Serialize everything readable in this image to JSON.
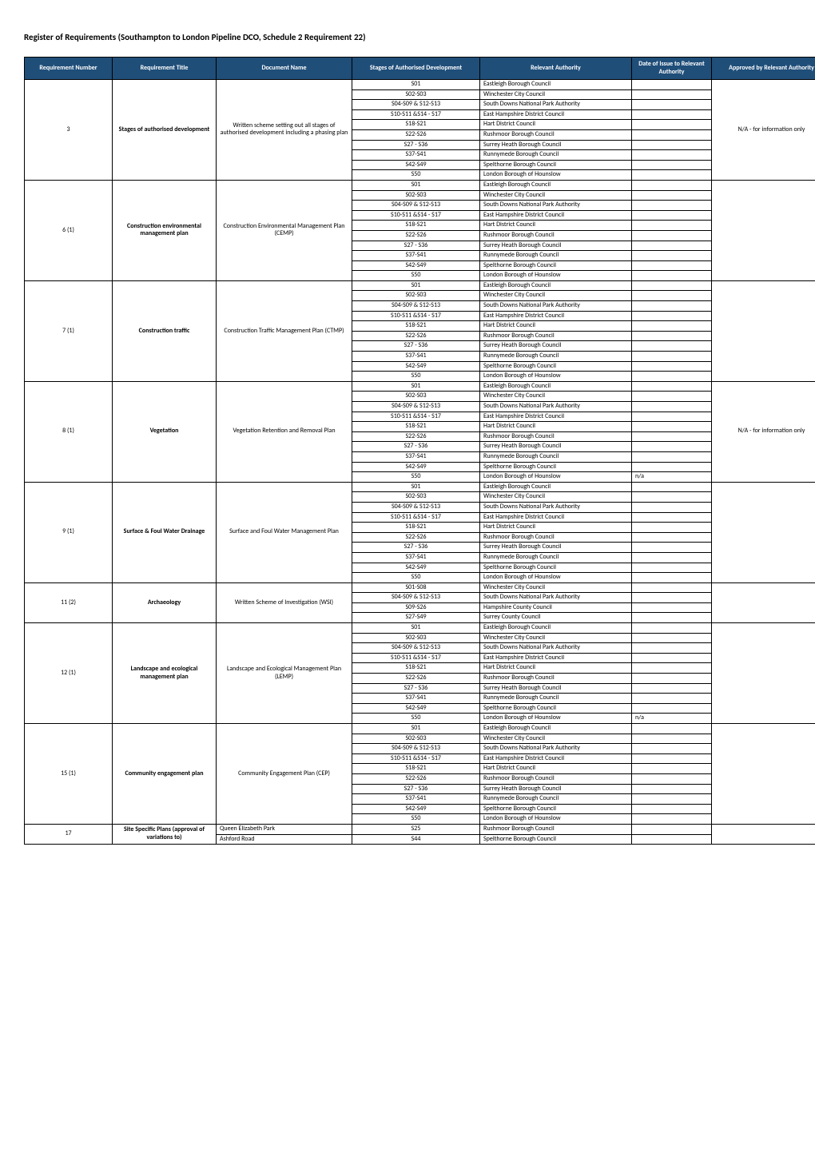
{
  "title": "Register of Requirements (Southampton to London Pipeline DCO, Schedule 2 Requirement 22)",
  "headers": [
    "Requirement Number",
    "Requirement Title",
    "Document Name",
    "Stages of Authorised Development",
    "Relevant Authority",
    "Date of Issue to Relevant Authority",
    "Approved by Relevant Authority"
  ],
  "stdStages": [
    "S01",
    "S02-S03",
    "S04-S09 & S12-S13",
    "S10-S11 &S14 - S17",
    "S18-S21",
    "S22-S26",
    "S27 - S36",
    "S37-S41",
    "S42-S49",
    "S50"
  ],
  "stdAuth": [
    "Eastleigh Borough Council",
    "Winchester City Council",
    "South Downs National Park Authority",
    "East Hampshire District Council",
    "Hart District Council",
    "Rushmoor Borough Council",
    "Surrey Heath Borough Council",
    "Runnymede Borough Council",
    "Spelthorne Borough Council",
    "London Borough of Hounslow"
  ],
  "groups": [
    {
      "num": "3",
      "title": "Stages of authorised development",
      "doc": "Written scheme setting out all stages of authorised development including a phasing plan",
      "useStd": true,
      "approved": "N/A - for information only"
    },
    {
      "num": "6 (1)",
      "title": "Construction environmental management plan",
      "doc": "Construction Environmental Management Plan (CEMP)",
      "useStd": true,
      "approved": ""
    },
    {
      "num": "7 (1)",
      "title": "Construction traffic",
      "doc": "Construction Traffic Management Plan (CTMP)",
      "useStd": true,
      "approved": ""
    },
    {
      "num": "8 (1)",
      "title": "Vegetation",
      "doc": "Vegetation Retention and Removal Plan",
      "useStd": true,
      "dates": [
        "",
        "",
        "",
        "",
        "",
        "",
        "",
        "",
        "",
        "n/a"
      ],
      "approved": "N/A - for information only"
    },
    {
      "num": "9 (1)",
      "title": "Surface & Foul Water Drainage",
      "doc": "Surface and Foul Water Management Plan",
      "useStd": true,
      "approved": ""
    },
    {
      "num": "11 (2)",
      "title": "Archaeology",
      "doc": "Written Scheme of Investigation (WSI)",
      "rows": [
        [
          "S01-S08",
          "Winchester City Council"
        ],
        [
          "S04-S09 & S12-S13",
          "South Downs National Park Authority"
        ],
        [
          "S09-S26",
          "Hampshire County Council"
        ],
        [
          "S27-S49",
          "Surrey County Council"
        ]
      ],
      "approved": ""
    },
    {
      "num": "12 (1)",
      "title": "Landscape and ecological management plan",
      "doc": "Landscape and Ecological Management Plan (LEMP)",
      "useStd": true,
      "dates": [
        "",
        "",
        "",
        "",
        "",
        "",
        "",
        "",
        "",
        "n/a"
      ],
      "approved": ""
    },
    {
      "num": "15 (1)",
      "title": "Community engagement plan",
      "doc": "Community Engagement Plan (CEP)",
      "useStd": true,
      "approved": ""
    },
    {
      "num": "17",
      "title": "Site Specific Plans (approval of variations to)",
      "docMultiple": [
        {
          "doc": "Queen Elizabeth Park",
          "stage": "S25",
          "auth": "Rushmoor Borough Council"
        },
        {
          "doc": "Ashford Road",
          "stage": "S44",
          "auth": "Spelthorne Borough Council"
        }
      ],
      "approved": ""
    }
  ],
  "style": {
    "header_bg": "#1f4e79",
    "header_fg": "#ffffff",
    "border": "#000000",
    "body_font_size": 8,
    "title_font_size": 11
  }
}
